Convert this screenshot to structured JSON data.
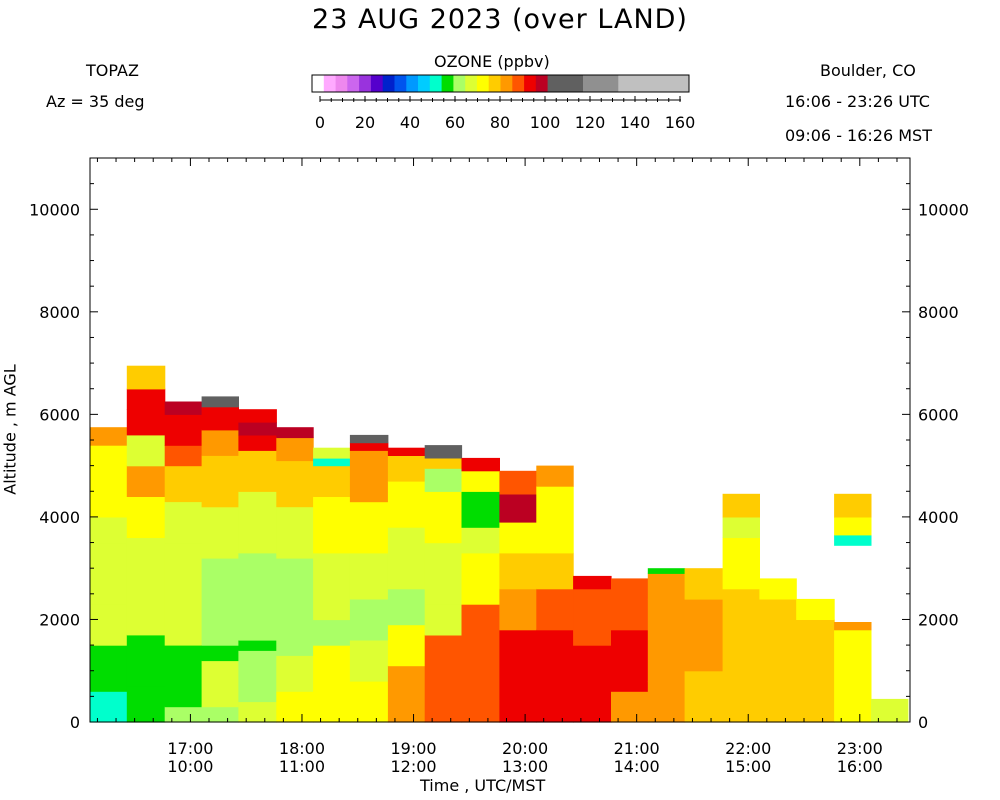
{
  "header": {
    "title": "23 AUG 2023 (over LAND)",
    "instrument": "TOPAZ",
    "azimuth": "Az =  35 deg",
    "location": "Boulder, CO",
    "utc_range": "16:06 - 23:26 UTC",
    "mst_range": "09:06 - 16:26 MST"
  },
  "colorbar": {
    "title": "OZONE (ppbv)",
    "ticks": [
      "0",
      "20",
      "40",
      "60",
      "80",
      "100",
      "120",
      "140",
      "160"
    ],
    "range": [
      0,
      160
    ],
    "bins": [
      {
        "from": 0,
        "to": 5,
        "color": "#ffffff"
      },
      {
        "from": 5,
        "to": 10,
        "color": "#ffaaff"
      },
      {
        "from": 10,
        "to": 15,
        "color": "#ee88ee"
      },
      {
        "from": 15,
        "to": 20,
        "color": "#cc66ee"
      },
      {
        "from": 20,
        "to": 25,
        "color": "#9933dd"
      },
      {
        "from": 25,
        "to": 30,
        "color": "#5500cc"
      },
      {
        "from": 30,
        "to": 35,
        "color": "#0022cc"
      },
      {
        "from": 35,
        "to": 40,
        "color": "#0055ee"
      },
      {
        "from": 40,
        "to": 45,
        "color": "#0099ff"
      },
      {
        "from": 45,
        "to": 50,
        "color": "#00ccff"
      },
      {
        "from": 50,
        "to": 55,
        "color": "#00ffcc"
      },
      {
        "from": 55,
        "to": 60,
        "color": "#00dd00"
      },
      {
        "from": 60,
        "to": 65,
        "color": "#aaff66"
      },
      {
        "from": 65,
        "to": 70,
        "color": "#ddff33"
      },
      {
        "from": 70,
        "to": 75,
        "color": "#ffff00"
      },
      {
        "from": 75,
        "to": 80,
        "color": "#ffcc00"
      },
      {
        "from": 80,
        "to": 85,
        "color": "#ff9900"
      },
      {
        "from": 85,
        "to": 90,
        "color": "#ff5500"
      },
      {
        "from": 90,
        "to": 95,
        "color": "#ee0000"
      },
      {
        "from": 95,
        "to": 100,
        "color": "#bb0022"
      },
      {
        "from": 100,
        "to": 115,
        "color": "#606060"
      },
      {
        "from": 115,
        "to": 130,
        "color": "#909090"
      },
      {
        "from": 130,
        "to": 145,
        "color": "#c0c0c0"
      },
      {
        "from": 145,
        "to": 160,
        "color": "#c0c0c0"
      }
    ]
  },
  "chart_data": {
    "type": "heatmap",
    "title": "23 AUG 2023 (over LAND)",
    "xlabel": "Time , UTC/MST",
    "ylabel": "Altitude , m AGL",
    "xlim_utc_hours": [
      16.1,
      23.45
    ],
    "ylim": [
      0,
      11000
    ],
    "y_ticks": [
      0,
      2000,
      4000,
      6000,
      8000,
      10000
    ],
    "x_ticks": [
      {
        "utc": "17:00",
        "mst": "10:00",
        "hour": 17
      },
      {
        "utc": "18:00",
        "mst": "11:00",
        "hour": 18
      },
      {
        "utc": "19:00",
        "mst": "12:00",
        "hour": 19
      },
      {
        "utc": "20:00",
        "mst": "13:00",
        "hour": 20
      },
      {
        "utc": "21:00",
        "mst": "14:00",
        "hour": 21
      },
      {
        "utc": "22:00",
        "mst": "15:00",
        "hour": 22
      },
      {
        "utc": "23:00",
        "mst": "16:00",
        "hour": 23
      }
    ],
    "profiles": [
      {
        "start": 16.1,
        "end": 16.43,
        "top": 5750,
        "layers": [
          [
            0,
            200,
            52
          ],
          [
            200,
            600,
            54
          ],
          [
            600,
            1500,
            58
          ],
          [
            1500,
            2300,
            65
          ],
          [
            2300,
            3500,
            67
          ],
          [
            3500,
            4000,
            66
          ],
          [
            4000,
            4800,
            74
          ],
          [
            4800,
            5400,
            72
          ],
          [
            5400,
            5750,
            80
          ]
        ]
      },
      {
        "start": 16.43,
        "end": 16.77,
        "top": 6950,
        "layers": [
          [
            0,
            700,
            58
          ],
          [
            700,
            1700,
            58
          ],
          [
            1700,
            2500,
            66
          ],
          [
            2500,
            3600,
            68
          ],
          [
            3600,
            4400,
            72
          ],
          [
            4400,
            5000,
            80
          ],
          [
            5000,
            5600,
            67
          ],
          [
            5600,
            6100,
            94
          ],
          [
            6100,
            6500,
            90
          ],
          [
            6500,
            6950,
            77
          ]
        ]
      },
      {
        "start": 16.77,
        "end": 17.1,
        "top": 6250,
        "layers": [
          [
            0,
            300,
            62
          ],
          [
            300,
            1000,
            58
          ],
          [
            1000,
            1500,
            58
          ],
          [
            1500,
            2400,
            65
          ],
          [
            2400,
            3500,
            67
          ],
          [
            3500,
            4300,
            66
          ],
          [
            4300,
            5000,
            76
          ],
          [
            5000,
            5400,
            85
          ],
          [
            5400,
            6000,
            90
          ],
          [
            6000,
            6250,
            97
          ]
        ]
      },
      {
        "start": 17.1,
        "end": 17.43,
        "top": 6350,
        "layers": [
          [
            0,
            300,
            62
          ],
          [
            300,
            1200,
            66
          ],
          [
            1200,
            1500,
            58
          ],
          [
            1500,
            3200,
            64
          ],
          [
            3200,
            4200,
            67
          ],
          [
            4200,
            5200,
            76
          ],
          [
            5200,
            5700,
            80
          ],
          [
            5700,
            6150,
            91
          ],
          [
            6150,
            6350,
            105
          ]
        ]
      },
      {
        "start": 17.43,
        "end": 17.77,
        "top": 6100,
        "layers": [
          [
            0,
            400,
            66
          ],
          [
            400,
            1400,
            64
          ],
          [
            1400,
            1600,
            58
          ],
          [
            1600,
            3300,
            63
          ],
          [
            3300,
            4500,
            67
          ],
          [
            4500,
            5300,
            76
          ],
          [
            5300,
            5600,
            92
          ],
          [
            5600,
            5850,
            97
          ],
          [
            5850,
            6100,
            93
          ]
        ]
      },
      {
        "start": 17.77,
        "end": 18.1,
        "top": 5750,
        "layers": [
          [
            0,
            600,
            72
          ],
          [
            600,
            1300,
            66
          ],
          [
            1300,
            1800,
            63
          ],
          [
            1800,
            3200,
            64
          ],
          [
            3200,
            4200,
            66
          ],
          [
            4200,
            5100,
            77
          ],
          [
            5100,
            5550,
            84
          ],
          [
            5550,
            5750,
            97
          ]
        ]
      },
      {
        "start": 18.1,
        "end": 18.43,
        "top": 5350,
        "layers": [
          [
            0,
            600,
            72
          ],
          [
            600,
            1500,
            70
          ],
          [
            1500,
            2000,
            64
          ],
          [
            2000,
            3300,
            66
          ],
          [
            3300,
            4400,
            70
          ],
          [
            4400,
            5000,
            76
          ],
          [
            5000,
            5150,
            52
          ],
          [
            5150,
            5350,
            66
          ]
        ]
      },
      {
        "start": 18.43,
        "end": 18.77,
        "top": 5600,
        "layers": [
          [
            0,
            800,
            71
          ],
          [
            800,
            1600,
            68
          ],
          [
            1600,
            2400,
            64
          ],
          [
            2400,
            3300,
            66
          ],
          [
            3300,
            4300,
            70
          ],
          [
            4300,
            5300,
            80
          ],
          [
            5300,
            5450,
            93
          ],
          [
            5450,
            5600,
            105
          ]
        ]
      },
      {
        "start": 18.77,
        "end": 19.1,
        "top": 5350,
        "layers": [
          [
            0,
            1100,
            80
          ],
          [
            1100,
            1900,
            70
          ],
          [
            1900,
            2600,
            64
          ],
          [
            2600,
            3800,
            66
          ],
          [
            3800,
            4700,
            71
          ],
          [
            4700,
            5200,
            78
          ],
          [
            5200,
            5350,
            92
          ]
        ]
      },
      {
        "start": 19.1,
        "end": 19.43,
        "top": 5400,
        "layers": [
          [
            0,
            1700,
            86
          ],
          [
            1700,
            2300,
            66
          ],
          [
            2300,
            3500,
            66
          ],
          [
            3500,
            4500,
            72
          ],
          [
            4500,
            4950,
            61
          ],
          [
            4950,
            5150,
            78
          ],
          [
            5150,
            5400,
            105
          ]
        ]
      },
      {
        "start": 19.43,
        "end": 19.77,
        "top": 5150,
        "layers": [
          [
            0,
            2300,
            88
          ],
          [
            2300,
            3300,
            72
          ],
          [
            3300,
            3800,
            65
          ],
          [
            3800,
            4500,
            58
          ],
          [
            4500,
            4900,
            73
          ],
          [
            4900,
            5150,
            92
          ]
        ]
      },
      {
        "start": 19.77,
        "end": 20.1,
        "top": 4900,
        "layers": [
          [
            0,
            1800,
            91
          ],
          [
            1800,
            2600,
            84
          ],
          [
            2600,
            3300,
            76
          ],
          [
            3300,
            3900,
            72
          ],
          [
            3900,
            4450,
            96
          ],
          [
            4450,
            4900,
            86
          ]
        ]
      },
      {
        "start": 20.1,
        "end": 20.43,
        "top": 5000,
        "layers": [
          [
            0,
            1800,
            91
          ],
          [
            1800,
            2600,
            86
          ],
          [
            2600,
            3300,
            75
          ],
          [
            3300,
            4600,
            74
          ],
          [
            4600,
            5000,
            80
          ]
        ]
      },
      {
        "start": 20.43,
        "end": 20.77,
        "top": 2850,
        "layers": [
          [
            0,
            500,
            91
          ],
          [
            500,
            1500,
            92
          ],
          [
            1500,
            2600,
            88
          ],
          [
            2600,
            2850,
            93
          ]
        ]
      },
      {
        "start": 20.77,
        "end": 21.1,
        "top": 2800,
        "layers": [
          [
            0,
            600,
            84
          ],
          [
            600,
            1800,
            90
          ],
          [
            1800,
            2800,
            86
          ]
        ]
      },
      {
        "start": 21.1,
        "end": 21.43,
        "top": 3000,
        "layers": [
          [
            0,
            800,
            82
          ],
          [
            800,
            2400,
            84
          ],
          [
            2400,
            2900,
            80
          ],
          [
            2900,
            3000,
            58
          ]
        ]
      },
      {
        "start": 21.43,
        "end": 21.77,
        "top": 3000,
        "layers": [
          [
            0,
            1000,
            78
          ],
          [
            1000,
            2400,
            80
          ],
          [
            2400,
            3000,
            79
          ]
        ]
      },
      {
        "start": 21.77,
        "end": 22.1,
        "top": 4450,
        "layers": [
          [
            0,
            800,
            78
          ],
          [
            800,
            2600,
            77
          ],
          [
            2600,
            3600,
            74
          ],
          [
            3600,
            4000,
            66
          ],
          [
            4000,
            4450,
            79
          ]
        ]
      },
      {
        "start": 22.1,
        "end": 22.43,
        "top": 2800,
        "layers": [
          [
            0,
            1200,
            78
          ],
          [
            1200,
            2400,
            77
          ],
          [
            2400,
            2800,
            74
          ]
        ]
      },
      {
        "start": 22.43,
        "end": 22.77,
        "top": 2400,
        "layers": [
          [
            0,
            1000,
            77
          ],
          [
            1000,
            2000,
            76
          ],
          [
            2000,
            2400,
            74
          ]
        ]
      },
      {
        "start": 22.77,
        "end": 23.1,
        "top": 4450,
        "layers": [
          [
            0,
            1800,
            73
          ],
          [
            1800,
            1950,
            82
          ],
          [
            3450,
            3650,
            50
          ],
          [
            3650,
            4000,
            73
          ],
          [
            4000,
            4450,
            76
          ]
        ]
      },
      {
        "start": 23.1,
        "end": 23.43,
        "top": 450,
        "layers": [
          [
            0,
            450,
            66
          ]
        ]
      }
    ]
  }
}
